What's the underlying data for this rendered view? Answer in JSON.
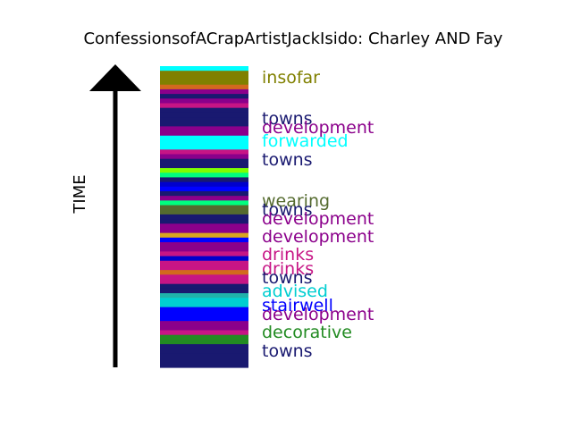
{
  "chart_data": {
    "type": "bar",
    "title": "ConfessionsofACrapArtistJackIsido: Charley AND Fay",
    "axis_label": "TIME",
    "axis_direction": "up",
    "bands_top_to_bottom": [
      {
        "color": "#00ffff"
      },
      {
        "color": "#808000"
      },
      {
        "color": "#808000"
      },
      {
        "color": "#808000"
      },
      {
        "color": "#d2691e"
      },
      {
        "color": "#8b008b"
      },
      {
        "color": "#191970"
      },
      {
        "color": "#8b008b"
      },
      {
        "color": "#c71585"
      },
      {
        "color": "#191970"
      },
      {
        "color": "#191970"
      },
      {
        "color": "#191970"
      },
      {
        "color": "#191970"
      },
      {
        "color": "#8b008b"
      },
      {
        "color": "#8b008b"
      },
      {
        "color": "#00ffff"
      },
      {
        "color": "#00ffff"
      },
      {
        "color": "#00ffff"
      },
      {
        "color": "#c71585"
      },
      {
        "color": "#8b008b"
      },
      {
        "color": "#191970"
      },
      {
        "color": "#191970"
      },
      {
        "color": "#7fff00"
      },
      {
        "color": "#00ff7f"
      },
      {
        "color": "#191970"
      },
      {
        "color": "#0000cd"
      },
      {
        "color": "#0000ff"
      },
      {
        "color": "#191970"
      },
      {
        "color": "#8b008b"
      },
      {
        "color": "#00ff7f"
      },
      {
        "color": "#556b2f"
      },
      {
        "color": "#556b2f"
      },
      {
        "color": "#191970"
      },
      {
        "color": "#191970"
      },
      {
        "color": "#8b008b"
      },
      {
        "color": "#8b008b"
      },
      {
        "color": "#daa520"
      },
      {
        "color": "#0000ff"
      },
      {
        "color": "#8b008b"
      },
      {
        "color": "#8b008b"
      },
      {
        "color": "#c71585"
      },
      {
        "color": "#0000cd"
      },
      {
        "color": "#c71585"
      },
      {
        "color": "#c71585"
      },
      {
        "color": "#d2691e"
      },
      {
        "color": "#c71585"
      },
      {
        "color": "#c71585"
      },
      {
        "color": "#191970"
      },
      {
        "color": "#191970"
      },
      {
        "color": "#20b2aa"
      },
      {
        "color": "#00ced1"
      },
      {
        "color": "#00ced1"
      },
      {
        "color": "#0000ff"
      },
      {
        "color": "#0000ff"
      },
      {
        "color": "#0000ff"
      },
      {
        "color": "#8b008b"
      },
      {
        "color": "#8b008b"
      },
      {
        "color": "#c71585"
      },
      {
        "color": "#228b22"
      },
      {
        "color": "#228b22"
      },
      {
        "color": "#191970"
      },
      {
        "color": "#191970"
      },
      {
        "color": "#191970"
      },
      {
        "color": "#191970"
      },
      {
        "color": "#191970"
      }
    ],
    "labels_top_to_bottom": [
      {
        "text": "insofar",
        "color": "#808000"
      },
      {
        "text": "towns",
        "color": "#191970"
      },
      {
        "text": "development",
        "color": "#8b008b"
      },
      {
        "text": "forwarded",
        "color": "#00ffff"
      },
      {
        "text": "towns",
        "color": "#191970"
      },
      {
        "text": "wearing",
        "color": "#556b2f"
      },
      {
        "text": "towns",
        "color": "#191970"
      },
      {
        "text": "development",
        "color": "#8b008b"
      },
      {
        "text": "development",
        "color": "#8b008b"
      },
      {
        "text": "drinks",
        "color": "#c71585"
      },
      {
        "text": "drinks",
        "color": "#c71585"
      },
      {
        "text": "towns",
        "color": "#191970"
      },
      {
        "text": "advised",
        "color": "#00ced1"
      },
      {
        "text": "stairwell",
        "color": "#0000ff"
      },
      {
        "text": "development",
        "color": "#8b008b"
      },
      {
        "text": "decorative",
        "color": "#228b22"
      },
      {
        "text": "towns",
        "color": "#191970"
      }
    ]
  }
}
